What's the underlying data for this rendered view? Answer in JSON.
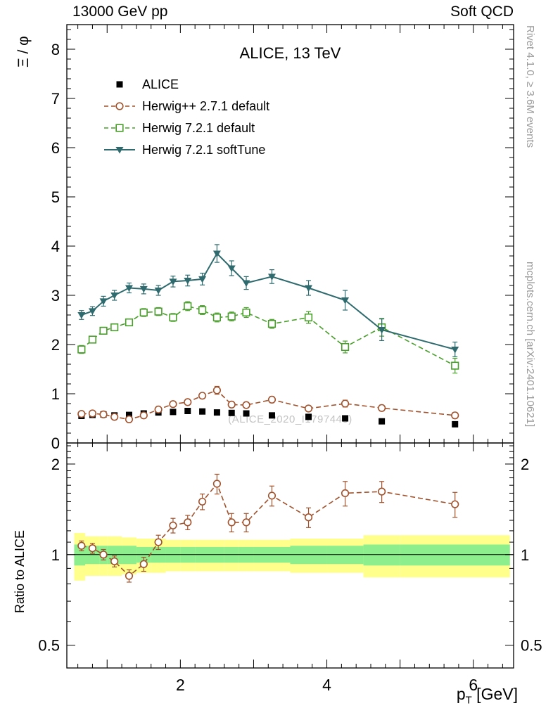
{
  "header": {
    "left": "13000 GeV pp",
    "right": "Soft QCD"
  },
  "side_notes": {
    "top": "Rivet 4.1.0, ≥ 3.6M events",
    "bottom": "mcplots.cern.ch [arXiv:2401.10621]"
  },
  "watermark": "(ALICE_2020_I1797443)",
  "axes_labels": {
    "y_main": "Ξ / φ",
    "y_ratio": "Ratio to ALICE",
    "x_base": "p",
    "x_sub": "T",
    "x_unit": " [GeV]"
  },
  "chart_data": {
    "type": "line",
    "title": "ALICE, 13 TeV",
    "xlabel": "pT [GeV]",
    "ylabel": "Xi / phi",
    "x": [
      0.65,
      0.8,
      0.95,
      1.1,
      1.3,
      1.5,
      1.7,
      1.9,
      2.1,
      2.3,
      2.5,
      2.7,
      2.9,
      3.25,
      3.75,
      4.25,
      4.75,
      5.75
    ],
    "series": [
      {
        "id": "alice",
        "name": "ALICE",
        "color": "#000000",
        "line": "none",
        "marker": "square_filled",
        "values": [
          0.55,
          0.57,
          0.58,
          0.56,
          0.57,
          0.6,
          0.62,
          0.63,
          0.65,
          0.64,
          0.62,
          0.61,
          0.6,
          0.56,
          0.53,
          0.5,
          0.44,
          0.38
        ],
        "errors": [
          0.02,
          0.02,
          0.02,
          0.02,
          0.02,
          0.02,
          0.02,
          0.02,
          0.02,
          0.02,
          0.02,
          0.02,
          0.02,
          0.02,
          0.02,
          0.02,
          0.02,
          0.02
        ]
      },
      {
        "id": "herwigpp-271-default",
        "name": "Herwig++ 2.7.1 default",
        "color": "#a0522d",
        "line": "dashed",
        "marker": "circle_open",
        "values": [
          0.59,
          0.6,
          0.58,
          0.53,
          0.48,
          0.56,
          0.68,
          0.79,
          0.83,
          0.96,
          1.07,
          0.78,
          0.77,
          0.88,
          0.7,
          0.8,
          0.71,
          0.56
        ],
        "errors": [
          0.02,
          0.02,
          0.02,
          0.02,
          0.02,
          0.03,
          0.03,
          0.04,
          0.04,
          0.05,
          0.08,
          0.05,
          0.05,
          0.06,
          0.05,
          0.07,
          0.06,
          0.06
        ]
      },
      {
        "id": "herwig-721-default",
        "name": "Herwig 7.2.1 default",
        "color": "#4a9e2c",
        "line": "dashed",
        "marker": "square_open",
        "values": [
          1.9,
          2.1,
          2.28,
          2.35,
          2.45,
          2.65,
          2.67,
          2.55,
          2.78,
          2.7,
          2.55,
          2.57,
          2.65,
          2.42,
          2.55,
          1.95,
          2.35,
          1.57
        ],
        "errors": [
          0.08,
          0.07,
          0.07,
          0.07,
          0.07,
          0.08,
          0.08,
          0.08,
          0.09,
          0.09,
          0.09,
          0.09,
          0.1,
          0.09,
          0.12,
          0.12,
          0.18,
          0.15
        ]
      },
      {
        "id": "herwig-721-softtune",
        "name": "Herwig 7.2.1 softTune",
        "color": "#2f6b6e",
        "line": "solid",
        "marker": "tri_down_filled",
        "values": [
          2.6,
          2.68,
          2.88,
          3.0,
          3.15,
          3.13,
          3.1,
          3.28,
          3.3,
          3.33,
          3.85,
          3.55,
          3.25,
          3.38,
          3.15,
          2.9,
          2.3,
          1.9
        ],
        "errors": [
          0.09,
          0.09,
          0.1,
          0.1,
          0.1,
          0.1,
          0.1,
          0.11,
          0.11,
          0.12,
          0.18,
          0.15,
          0.13,
          0.14,
          0.15,
          0.2,
          0.22,
          0.15
        ]
      }
    ],
    "axes": {
      "x_range": [
        0.45,
        6.55
      ],
      "x_labeled_ticks": [
        2,
        4,
        6
      ],
      "y_main_range": [
        0,
        8.5
      ],
      "y_main_ticks": [
        0,
        1,
        2,
        3,
        4,
        5,
        6,
        7,
        8
      ],
      "y_ratio_range": [
        0.42,
        2.35
      ],
      "y_ratio_scale": "log",
      "y_ratio_ticks": [
        0.5,
        1,
        2
      ],
      "grid": false
    },
    "ratio": {
      "label": "Ratio to ALICE",
      "series_id": "herwigpp-271-default",
      "values": [
        1.07,
        1.05,
        1.0,
        0.95,
        0.85,
        0.93,
        1.1,
        1.25,
        1.28,
        1.5,
        1.72,
        1.28,
        1.28,
        1.57,
        1.33,
        1.6,
        1.62,
        1.47
      ],
      "errors": [
        0.04,
        0.04,
        0.04,
        0.04,
        0.04,
        0.05,
        0.06,
        0.07,
        0.07,
        0.09,
        0.13,
        0.09,
        0.09,
        0.12,
        0.1,
        0.15,
        0.13,
        0.14
      ],
      "band_edges": [
        0.55,
        0.7,
        0.9,
        1.0,
        1.2,
        1.4,
        1.6,
        1.8,
        2.0,
        2.2,
        2.4,
        2.6,
        2.8,
        3.0,
        3.5,
        4.0,
        4.5,
        5.0,
        6.5
      ],
      "yellow_halfwidth": [
        0.18,
        0.15,
        0.15,
        0.15,
        0.14,
        0.13,
        0.13,
        0.12,
        0.12,
        0.12,
        0.12,
        0.12,
        0.12,
        0.12,
        0.13,
        0.13,
        0.16,
        0.16
      ],
      "green_halfwidth": [
        0.08,
        0.07,
        0.07,
        0.07,
        0.07,
        0.06,
        0.06,
        0.06,
        0.06,
        0.06,
        0.06,
        0.06,
        0.06,
        0.06,
        0.07,
        0.07,
        0.08,
        0.08
      ],
      "band_colors": {
        "outer": "#ffff8c",
        "inner": "#8cee8c"
      }
    }
  }
}
